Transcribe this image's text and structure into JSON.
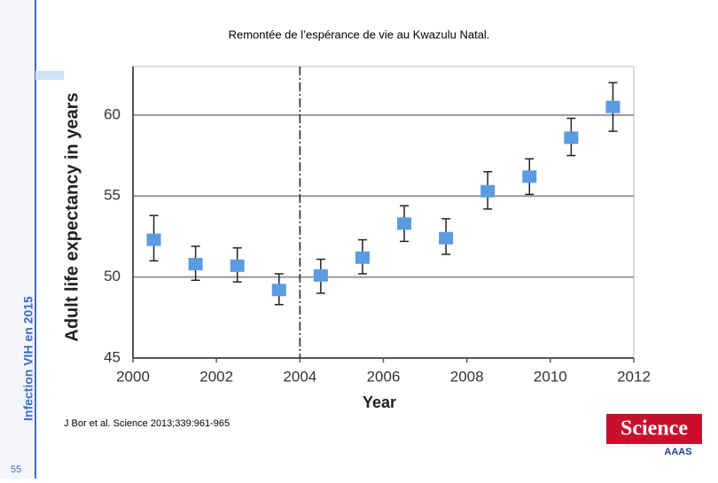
{
  "slide": {
    "sidebar": "Infection VIH en 2015",
    "page_number": "55",
    "citation": "J Bor et al. Science 2013;339:961-965",
    "logo": "Science",
    "logo_sub": "AAAS"
  },
  "chart_data": {
    "type": "scatter",
    "title": "Remontée de l’espérance de vie au Kwazulu Natal.",
    "x_label": "Year",
    "y_label": "Adult life expectancy in years",
    "x": [
      2000.5,
      2001.5,
      2002.5,
      2003.5,
      2004.5,
      2005.5,
      2006.5,
      2007.5,
      2008.5,
      2009.5,
      2010.5,
      2011.5
    ],
    "values": [
      52.3,
      50.8,
      50.7,
      49.2,
      50.1,
      51.2,
      53.3,
      52.4,
      55.3,
      56.2,
      58.6,
      60.5
    ],
    "lower": [
      51.0,
      49.8,
      49.7,
      48.3,
      49.0,
      50.2,
      52.2,
      51.4,
      54.2,
      55.1,
      57.5,
      59.0
    ],
    "upper": [
      53.8,
      51.9,
      51.8,
      50.2,
      51.1,
      52.3,
      54.4,
      53.6,
      56.5,
      57.3,
      59.8,
      62.0
    ],
    "color": "#5b9be0",
    "xlim": [
      2000,
      2012
    ],
    "xticks": [
      2000,
      2002,
      2004,
      2006,
      2008,
      2010,
      2012
    ],
    "ylim": [
      45,
      63
    ],
    "yticks": [
      45,
      50,
      55,
      60
    ],
    "grid": true,
    "vline": 2004
  }
}
